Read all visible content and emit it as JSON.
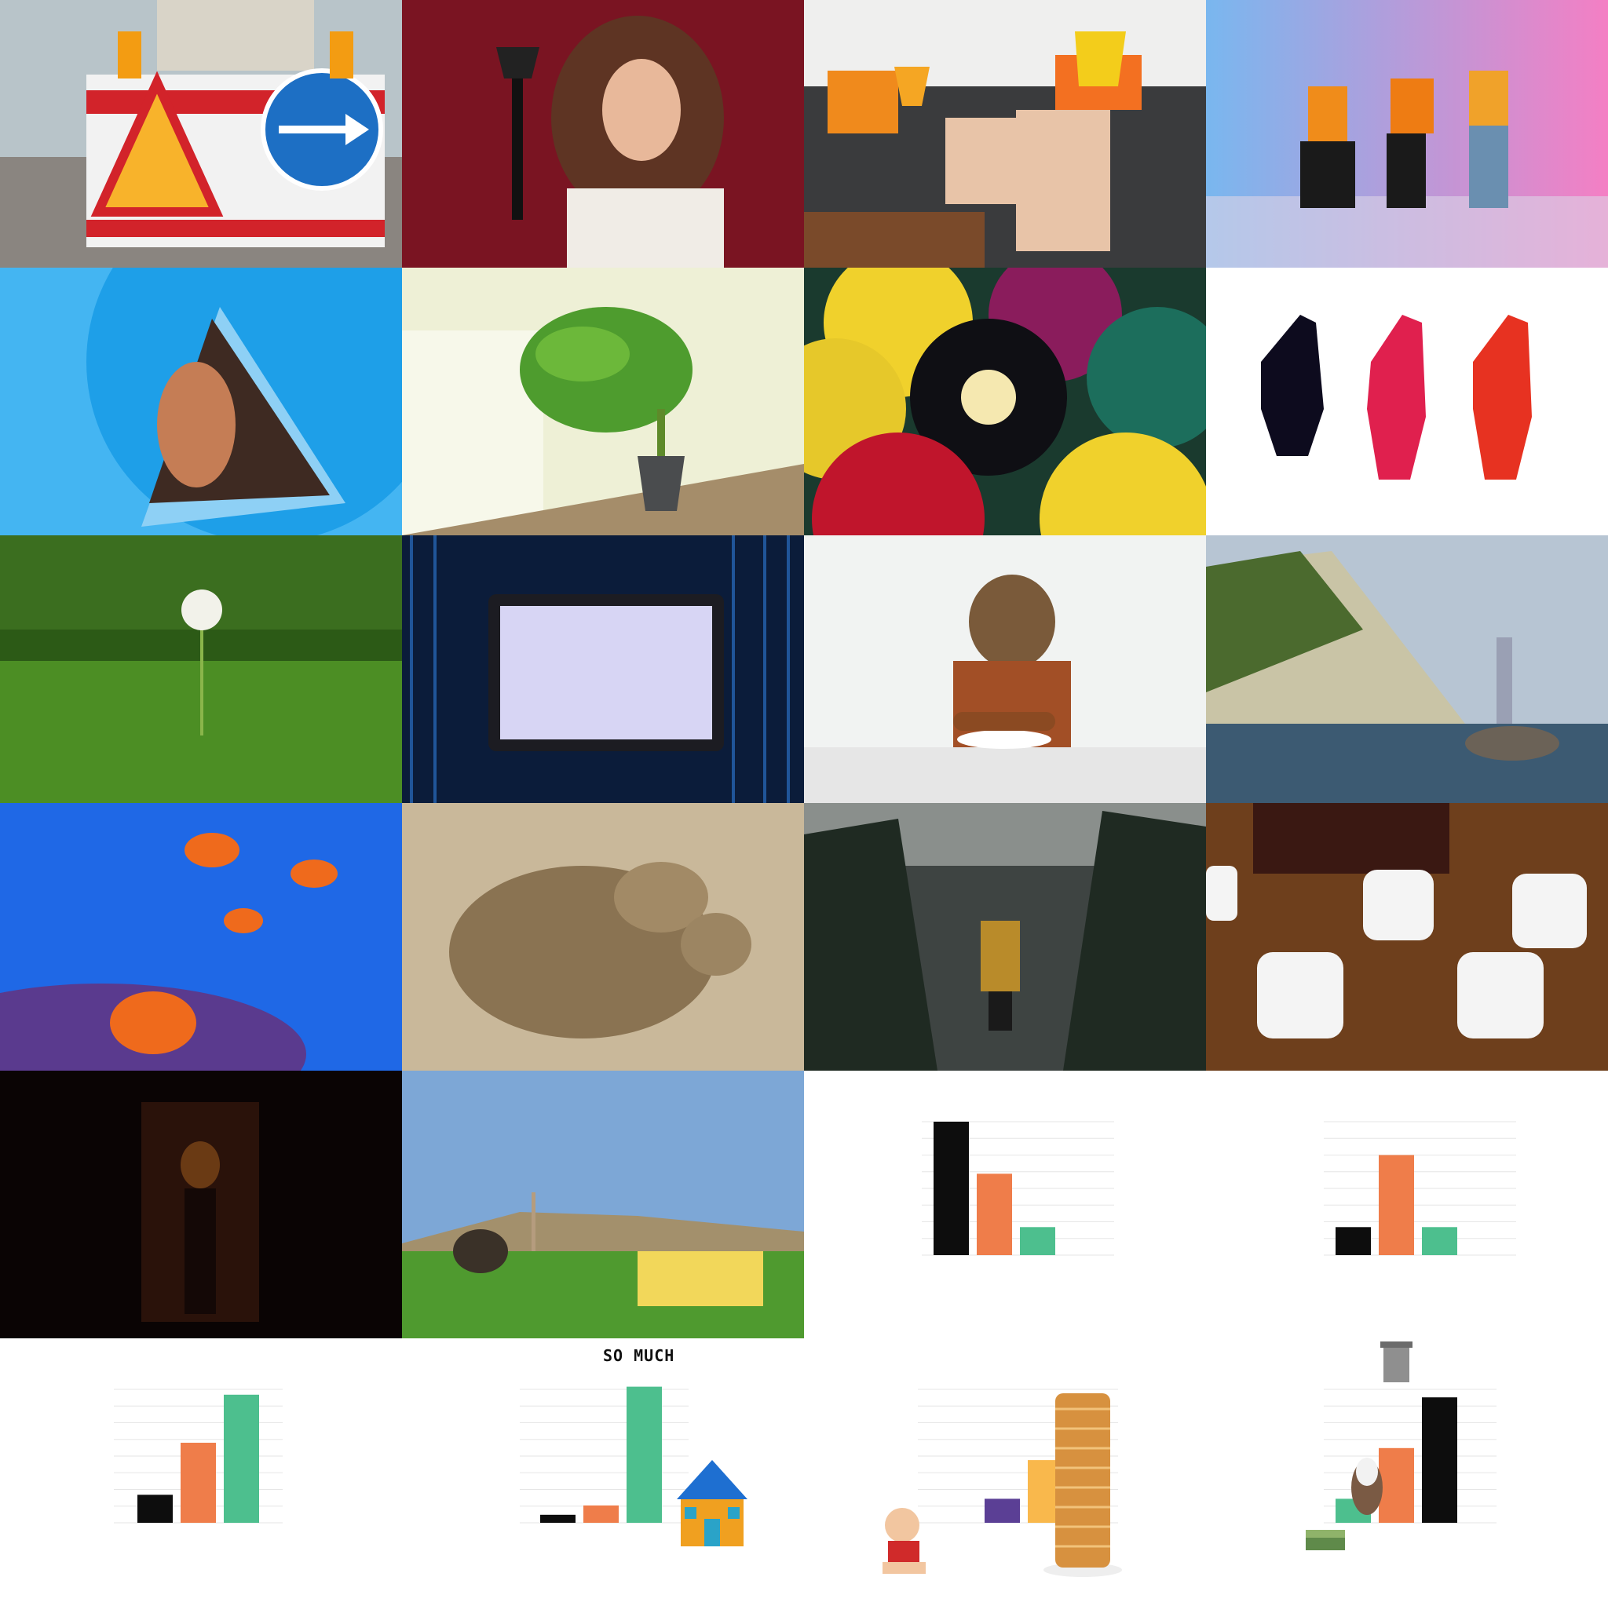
{
  "photos": [
    {
      "name": "roadworks-barrier-photo"
    },
    {
      "name": "woman-with-axe-photo"
    },
    {
      "name": "buckets-on-heads-sofa-photo"
    },
    {
      "name": "three-dancers-photo"
    },
    {
      "name": "ear-in-triangle-photo"
    },
    {
      "name": "banana-plant-window-photo"
    },
    {
      "name": "billiard-balls-photo"
    },
    {
      "name": "dripping-paint-hands-photo"
    },
    {
      "name": "dandelion-in-clover-photo"
    },
    {
      "name": "tablet-binary-code-photo"
    },
    {
      "name": "dinosaur-mask-eating-photo"
    },
    {
      "name": "handstand-on-rock-photo"
    },
    {
      "name": "clownfish-reef-photo"
    },
    {
      "name": "fighting-meerkats-photo"
    },
    {
      "name": "hooded-figure-forest-photo"
    },
    {
      "name": "dice-on-table-photo"
    },
    {
      "name": "dark-hallway-creature-photo"
    },
    {
      "name": "ostrich-and-yellow-sofa-photo"
    }
  ],
  "colors": {
    "black": "#0d0d0d",
    "orange": "#ef7d4a",
    "green": "#4dbf8e",
    "purple": "#5b3f95",
    "yellow": "#f9b84c",
    "grid": "#e6e6e6"
  },
  "chart_data": [
    {
      "type": "bar",
      "values": [
        100,
        61,
        21
      ],
      "colors": [
        "#0d0d0d",
        "#ef7d4a",
        "#4dbf8e"
      ],
      "ylim": [
        0,
        100
      ]
    },
    {
      "type": "bar",
      "values": [
        21,
        75,
        21
      ],
      "colors": [
        "#0d0d0d",
        "#ef7d4a",
        "#4dbf8e"
      ],
      "ylim": [
        0,
        100
      ]
    },
    {
      "type": "bar",
      "values": [
        21,
        60,
        96
      ],
      "colors": [
        "#0d0d0d",
        "#ef7d4a",
        "#4dbf8e"
      ],
      "ylim": [
        0,
        100
      ]
    },
    {
      "type": "bar",
      "values": [
        6,
        13,
        102
      ],
      "colors": [
        "#0d0d0d",
        "#ef7d4a",
        "#4dbf8e"
      ],
      "ylim": [
        0,
        100
      ],
      "annotation": "SO MUCH"
    },
    {
      "type": "bar",
      "values": [
        0,
        18,
        47,
        70
      ],
      "colors": [
        "#ef7d4a",
        "#5b3f95",
        "#f9b84c",
        "#f9b84c"
      ],
      "ylim": [
        0,
        100
      ]
    },
    {
      "type": "bar",
      "values": [
        18,
        56,
        94
      ],
      "colors": [
        "#4dbf8e",
        "#ef7d4a",
        "#0d0d0d"
      ],
      "ylim": [
        0,
        100
      ]
    }
  ]
}
